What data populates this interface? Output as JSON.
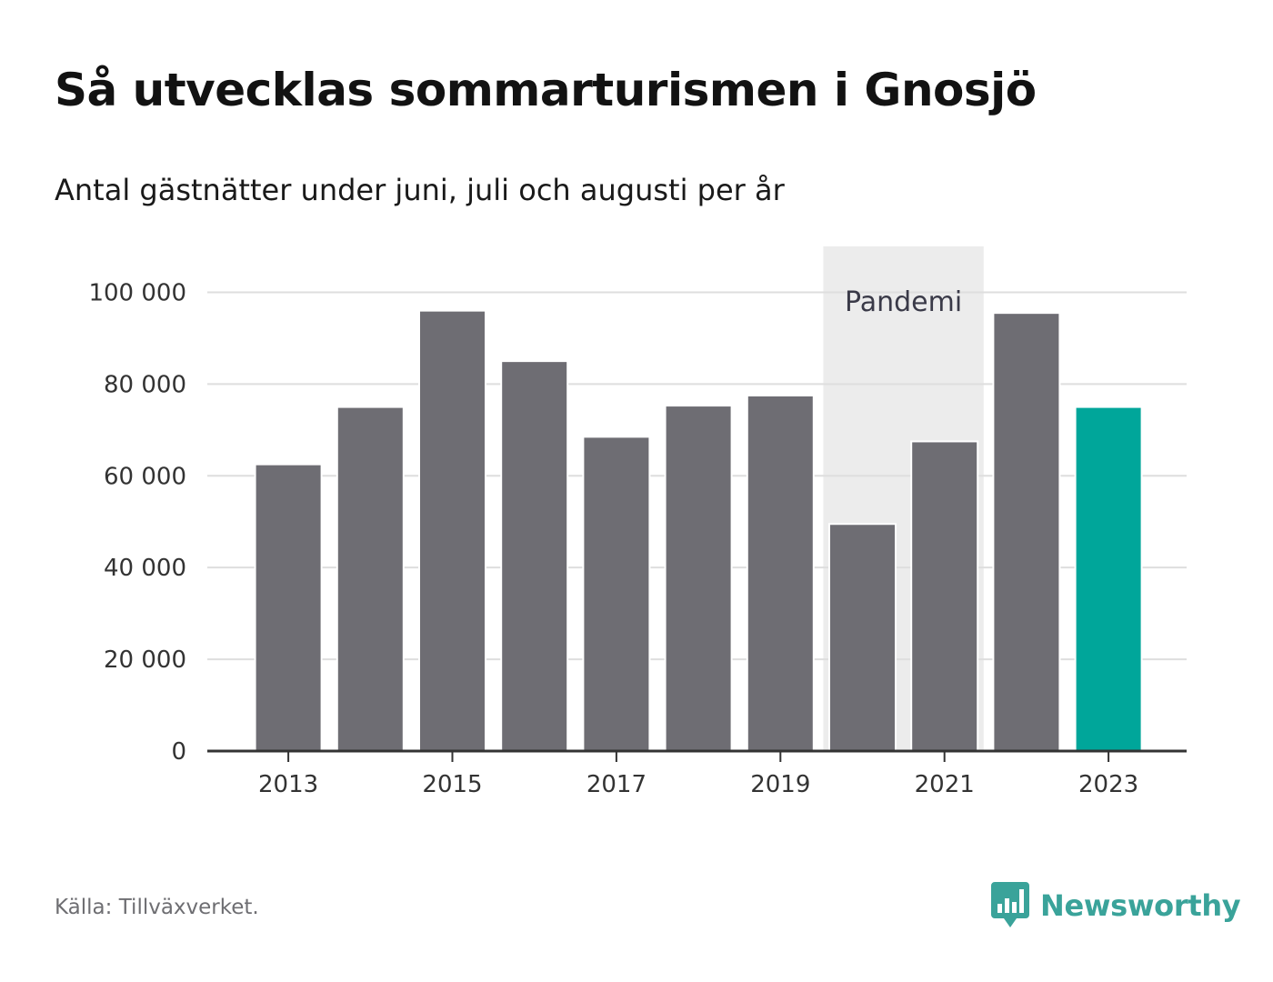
{
  "header": {
    "title": "Så utvecklas sommarturismen i Gnosjö",
    "subtitle": "Antal gästnätter under juni, juli och augusti per år"
  },
  "footer": {
    "source": "Källa: Tillväxverket.",
    "brand": "Newsworthy",
    "brand_icon": "bar-chart-speech-bubble-icon"
  },
  "colors": {
    "bar": "#6e6d73",
    "highlight": "#00a69a",
    "shade": "#ececec",
    "grid": "#dedede",
    "axis": "#333333"
  },
  "chart_data": {
    "type": "bar",
    "categories": [
      "2013",
      "2014",
      "2015",
      "2016",
      "2017",
      "2018",
      "2019",
      "2020",
      "2021",
      "2022",
      "2023"
    ],
    "values": [
      62500,
      75000,
      96000,
      85000,
      68500,
      75300,
      77500,
      49500,
      67500,
      95500,
      75000
    ],
    "highlight_category": "2023",
    "x_tick_labels": [
      "2013",
      "2015",
      "2017",
      "2019",
      "2021",
      "2023"
    ],
    "y_ticks": [
      0,
      20000,
      40000,
      60000,
      80000,
      100000
    ],
    "y_tick_labels": [
      "0",
      "20 000",
      "40 000",
      "60 000",
      "80 000",
      "100 000"
    ],
    "ylim": [
      0,
      110000
    ],
    "grid": true,
    "shaded_region": {
      "label": "Pandemi",
      "from": "2020",
      "to": "2021"
    },
    "title": "Så utvecklas sommarturismen i Gnosjö",
    "subtitle": "Antal gästnätter under juni, juli och augusti per år",
    "xlabel": "",
    "ylabel": ""
  }
}
